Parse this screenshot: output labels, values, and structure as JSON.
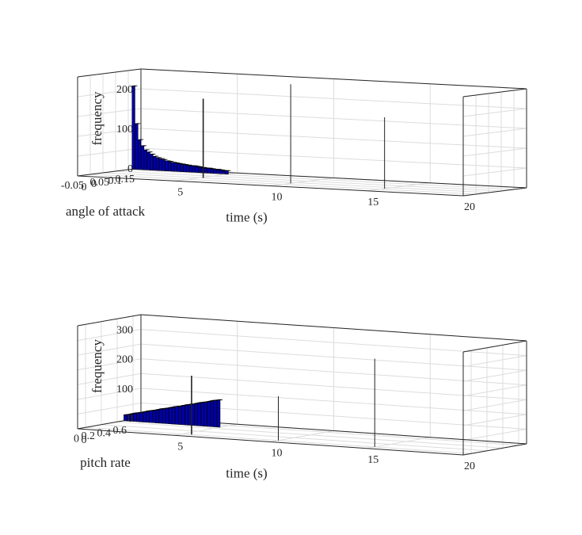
{
  "chart_data": [
    {
      "type": "bar3d",
      "title": "",
      "zlabel": "frequency",
      "xlabel": "time (s)",
      "ylabel": "angle of attack",
      "xlim": [
        0,
        20
      ],
      "ylim": [
        -0.1,
        0.15
      ],
      "zlim": [
        0,
        250
      ],
      "x_ticks": [
        "0",
        "5",
        "10",
        "15",
        "20"
      ],
      "y_ticks": [
        "0.15",
        "0.1",
        "0.05",
        "0",
        "-0.05"
      ],
      "z_ticks": [
        "0",
        "100",
        "200"
      ],
      "grid": true,
      "bar_color": "#0000aa",
      "bar_row": {
        "x_range": [
          0,
          5
        ],
        "y": 0.12,
        "values": [
          210,
          115,
          75,
          60,
          50,
          45,
          40,
          35,
          32,
          30,
          28,
          25,
          24,
          22,
          21,
          20,
          19,
          18,
          17,
          16,
          16,
          15,
          14,
          13,
          12,
          12,
          11,
          10,
          10,
          9,
          8,
          8
        ]
      },
      "spikes": [
        {
          "x": 5.2,
          "y": 0.0,
          "z": 200,
          "width": 0.2
        },
        {
          "x": 10.0,
          "y": -0.02,
          "z": 250,
          "width": 0.1
        },
        {
          "x": 15.0,
          "y": -0.03,
          "z": 180,
          "width": 0.05
        }
      ]
    },
    {
      "type": "bar3d",
      "title": "",
      "zlabel": "frequency",
      "xlabel": "time (s)",
      "ylabel": "pitch rate",
      "xlim": [
        0,
        20
      ],
      "ylim": [
        -0.1,
        0.7
      ],
      "zlim": [
        0,
        350
      ],
      "x_ticks": [
        "0",
        "5",
        "10",
        "15",
        "20"
      ],
      "y_ticks": [
        "0.6",
        "0.4",
        "0.2",
        "0"
      ],
      "z_ticks": [
        "0",
        "100",
        "200",
        "300"
      ],
      "grid": true,
      "bar_color": "#0000aa",
      "bar_row": {
        "x_range": [
          0,
          5
        ],
        "y": 0.5,
        "values": [
          20,
          22,
          25,
          28,
          30,
          32,
          35,
          38,
          40,
          42,
          45,
          48,
          50,
          52,
          55,
          58,
          60,
          62,
          65,
          68,
          70,
          72,
          75,
          78,
          80,
          82,
          85,
          88,
          90,
          92
        ]
      },
      "spikes": [
        {
          "x": 5.5,
          "y": 0.0,
          "z": 200,
          "width": 0.2
        },
        {
          "x": 10.0,
          "y": 0.0,
          "z": 150,
          "width": 0.1
        },
        {
          "x": 15.0,
          "y": 0.0,
          "z": 300,
          "width": 0.05
        }
      ]
    }
  ]
}
